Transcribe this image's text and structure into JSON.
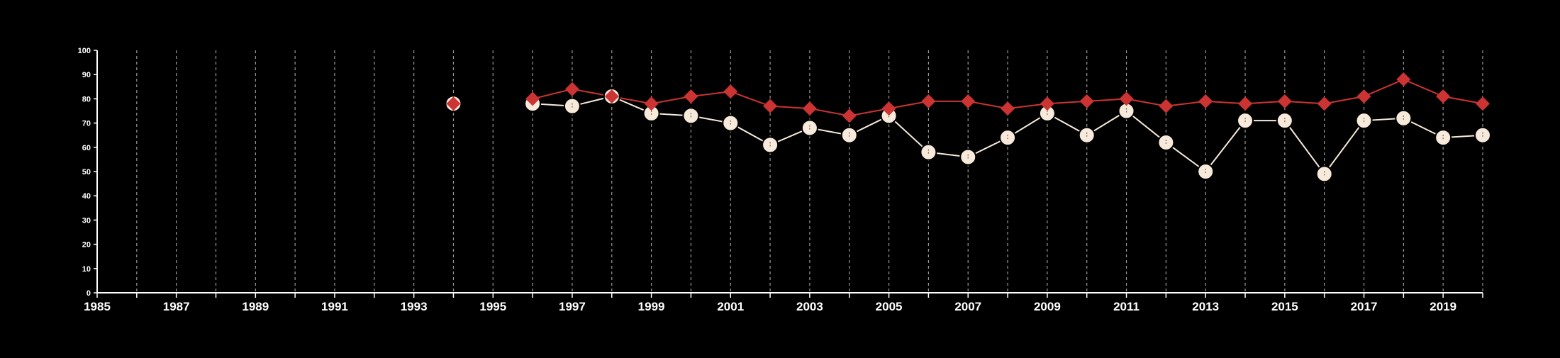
{
  "chart_data": {
    "type": "line",
    "title": "",
    "xlabel": "",
    "ylabel": "",
    "xlim": [
      1985,
      2020
    ],
    "ylim": [
      0,
      100
    ],
    "y_ticks": [
      0,
      10,
      20,
      30,
      40,
      50,
      60,
      70,
      80,
      90,
      100
    ],
    "x_tick_labels": [
      1985,
      1987,
      1989,
      1991,
      1993,
      1995,
      1997,
      1999,
      2001,
      2003,
      2005,
      2007,
      2009,
      2011,
      2013,
      2015,
      2017,
      2019
    ],
    "x_gridlines": [
      1986,
      1987,
      1988,
      1989,
      1990,
      1991,
      1992,
      1993,
      1994,
      1995,
      1996,
      1997,
      1998,
      1999,
      2000,
      2001,
      2002,
      2003,
      2004,
      2005,
      2006,
      2007,
      2008,
      2009,
      2010,
      2011,
      2012,
      2013,
      2014,
      2015,
      2016,
      2017,
      2018,
      2019,
      2020
    ],
    "grid": "vertical dashed",
    "legend": "none",
    "series": [
      {
        "marker": "circle",
        "color": "#f8eadb",
        "points": [
          {
            "x": 1994,
            "y": 78
          },
          {
            "x": 1996,
            "y": 78
          },
          {
            "x": 1997,
            "y": 77
          },
          {
            "x": 1998,
            "y": 81
          },
          {
            "x": 1999,
            "y": 74
          },
          {
            "x": 2000,
            "y": 73
          },
          {
            "x": 2001,
            "y": 70
          },
          {
            "x": 2002,
            "y": 61
          },
          {
            "x": 2003,
            "y": 68
          },
          {
            "x": 2004,
            "y": 65
          },
          {
            "x": 2005,
            "y": 73
          },
          {
            "x": 2006,
            "y": 58
          },
          {
            "x": 2007,
            "y": 56
          },
          {
            "x": 2008,
            "y": 64
          },
          {
            "x": 2009,
            "y": 74
          },
          {
            "x": 2010,
            "y": 65
          },
          {
            "x": 2011,
            "y": 75
          },
          {
            "x": 2012,
            "y": 62
          },
          {
            "x": 2013,
            "y": 50
          },
          {
            "x": 2014,
            "y": 71
          },
          {
            "x": 2015,
            "y": 71
          },
          {
            "x": 2016,
            "y": 49
          },
          {
            "x": 2017,
            "y": 71
          },
          {
            "x": 2018,
            "y": 72
          },
          {
            "x": 2019,
            "y": 64
          },
          {
            "x": 2020,
            "y": 65
          }
        ]
      },
      {
        "marker": "diamond",
        "color": "#cc3333",
        "points": [
          {
            "x": 1994,
            "y": 78
          },
          {
            "x": 1996,
            "y": 80
          },
          {
            "x": 1997,
            "y": 84
          },
          {
            "x": 1998,
            "y": 81
          },
          {
            "x": 1999,
            "y": 78
          },
          {
            "x": 2000,
            "y": 81
          },
          {
            "x": 2001,
            "y": 83
          },
          {
            "x": 2002,
            "y": 77
          },
          {
            "x": 2003,
            "y": 76
          },
          {
            "x": 2004,
            "y": 73
          },
          {
            "x": 2005,
            "y": 76
          },
          {
            "x": 2006,
            "y": 79
          },
          {
            "x": 2007,
            "y": 79
          },
          {
            "x": 2008,
            "y": 76
          },
          {
            "x": 2009,
            "y": 78
          },
          {
            "x": 2010,
            "y": 79
          },
          {
            "x": 2011,
            "y": 80
          },
          {
            "x": 2012,
            "y": 77
          },
          {
            "x": 2013,
            "y": 79
          },
          {
            "x": 2014,
            "y": 78
          },
          {
            "x": 2015,
            "y": 79
          },
          {
            "x": 2016,
            "y": 78
          },
          {
            "x": 2017,
            "y": 81
          },
          {
            "x": 2018,
            "y": 88
          },
          {
            "x": 2019,
            "y": 81
          },
          {
            "x": 2020,
            "y": 78
          }
        ]
      }
    ]
  }
}
